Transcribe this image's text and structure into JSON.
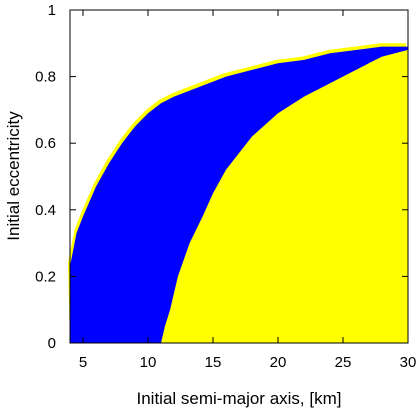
{
  "chart_data": {
    "type": "area",
    "xlabel": "Initial semi-major axis, [km]",
    "ylabel": "Initial eccentricity",
    "xlim": [
      4,
      30
    ],
    "ylim": [
      0,
      1
    ],
    "x_ticks": [
      "5",
      "10",
      "15",
      "20",
      "25",
      "30"
    ],
    "x_tick_values": [
      5,
      10,
      15,
      20,
      25,
      30
    ],
    "y_ticks": [
      "0",
      "0.2",
      "0.4",
      "0.6",
      "0.8",
      "1"
    ],
    "y_tick_values": [
      0,
      0.2,
      0.4,
      0.6,
      0.8,
      1
    ],
    "grid": false,
    "series": [
      {
        "color": "#0000ff",
        "region": "upper_boundary_to_inner_edge",
        "boundary": [
          {
            "x": 4.0,
            "y": 0.23
          },
          {
            "x": 4.5,
            "y": 0.33
          },
          {
            "x": 5.0,
            "y": 0.38
          },
          {
            "x": 6.0,
            "y": 0.47
          },
          {
            "x": 7.0,
            "y": 0.54
          },
          {
            "x": 8.0,
            "y": 0.6
          },
          {
            "x": 9.0,
            "y": 0.65
          },
          {
            "x": 10.0,
            "y": 0.69
          },
          {
            "x": 11.0,
            "y": 0.72
          },
          {
            "x": 12.0,
            "y": 0.74
          },
          {
            "x": 14.0,
            "y": 0.77
          },
          {
            "x": 16.0,
            "y": 0.8
          },
          {
            "x": 18.0,
            "y": 0.82
          },
          {
            "x": 20.0,
            "y": 0.84
          },
          {
            "x": 22.0,
            "y": 0.85
          },
          {
            "x": 24.0,
            "y": 0.87
          },
          {
            "x": 26.0,
            "y": 0.88
          },
          {
            "x": 28.0,
            "y": 0.89
          },
          {
            "x": 30.0,
            "y": 0.89
          }
        ],
        "inner_edge": [
          {
            "x": 11.0,
            "y": 0.0
          },
          {
            "x": 11.3,
            "y": 0.05
          },
          {
            "x": 11.7,
            "y": 0.1
          },
          {
            "x": 12.3,
            "y": 0.2
          },
          {
            "x": 13.2,
            "y": 0.3
          },
          {
            "x": 14.2,
            "y": 0.38
          },
          {
            "x": 15.0,
            "y": 0.45
          },
          {
            "x": 16.0,
            "y": 0.52
          },
          {
            "x": 18.0,
            "y": 0.62
          },
          {
            "x": 20.0,
            "y": 0.69
          },
          {
            "x": 22.0,
            "y": 0.74
          },
          {
            "x": 24.0,
            "y": 0.78
          },
          {
            "x": 26.0,
            "y": 0.82
          },
          {
            "x": 27.5,
            "y": 0.85
          },
          {
            "x": 29.0,
            "y": 0.87
          },
          {
            "x": 30.0,
            "y": 0.88
          }
        ]
      },
      {
        "color": "#ffff00",
        "region": "below_inner_edge",
        "boundary": [
          {
            "x": 11.5,
            "y": 0.0
          },
          {
            "x": 11.8,
            "y": 0.05
          },
          {
            "x": 12.2,
            "y": 0.1
          },
          {
            "x": 12.8,
            "y": 0.2
          },
          {
            "x": 13.6,
            "y": 0.3
          },
          {
            "x": 14.6,
            "y": 0.38
          },
          {
            "x": 15.4,
            "y": 0.45
          },
          {
            "x": 16.5,
            "y": 0.52
          },
          {
            "x": 18.5,
            "y": 0.62
          },
          {
            "x": 20.5,
            "y": 0.69
          },
          {
            "x": 22.5,
            "y": 0.74
          },
          {
            "x": 24.5,
            "y": 0.78
          },
          {
            "x": 26.0,
            "y": 0.81
          },
          {
            "x": 27.0,
            "y": 0.84
          },
          {
            "x": 28.0,
            "y": 0.86
          },
          {
            "x": 30.0,
            "y": 0.88
          }
        ]
      }
    ]
  }
}
